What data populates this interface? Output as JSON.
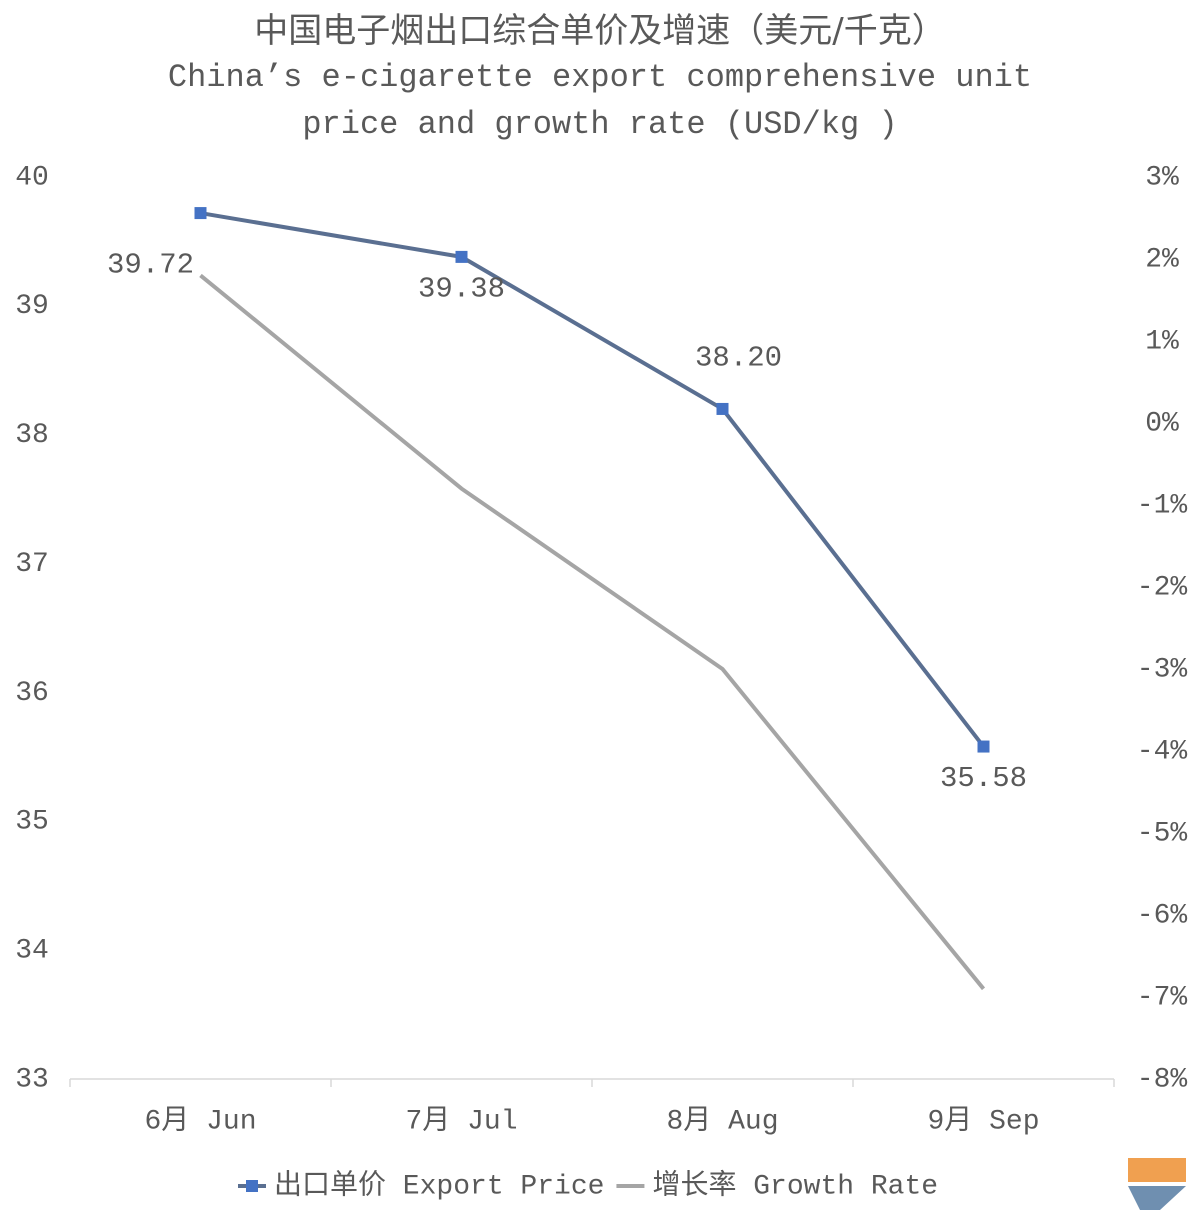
{
  "chart_data": {
    "type": "line",
    "title": "中国电子烟出口综合单价及增速（美元/千克）",
    "subtitle": "China’s e-cigarette export comprehensive unit price and growth rate (USD/kg )",
    "categories": [
      "6月 Jun",
      "7月 Jul",
      "8月 Aug",
      "9月 Sep"
    ],
    "series": [
      {
        "name": "出口单价 Export Price",
        "color": "#5a6f91",
        "marker_color": "#4472c4",
        "values": [
          39.72,
          39.38,
          38.2,
          35.58
        ],
        "value_labels": [
          "39.72",
          "39.38",
          "38.20",
          "35.58"
        ]
      },
      {
        "name": "增长率 Growth Rate",
        "color": "#a5a5a5",
        "axis": "y2",
        "values": [
          1.8,
          -0.8,
          -3.0,
          -6.9
        ]
      }
    ],
    "ylim": [
      33,
      40
    ],
    "yticks": [
      33,
      34,
      35,
      36,
      37,
      38,
      39,
      40
    ],
    "y2lim": [
      -8,
      3
    ],
    "y2ticks": [
      {
        "value": -8,
        "label": "-8%"
      },
      {
        "value": -7,
        "label": "-7%"
      },
      {
        "value": -6,
        "label": "-6%"
      },
      {
        "value": -5,
        "label": "-5%"
      },
      {
        "value": -4,
        "label": "-4%"
      },
      {
        "value": -3,
        "label": "-3%"
      },
      {
        "value": -2,
        "label": "-2%"
      },
      {
        "value": -1,
        "label": "-1%"
      },
      {
        "value": 0,
        "label": "0%"
      },
      {
        "value": 1,
        "label": "1%"
      },
      {
        "value": 2,
        "label": "2%"
      },
      {
        "value": 3,
        "label": "3%"
      }
    ],
    "legend": "bottom",
    "grid": false
  }
}
